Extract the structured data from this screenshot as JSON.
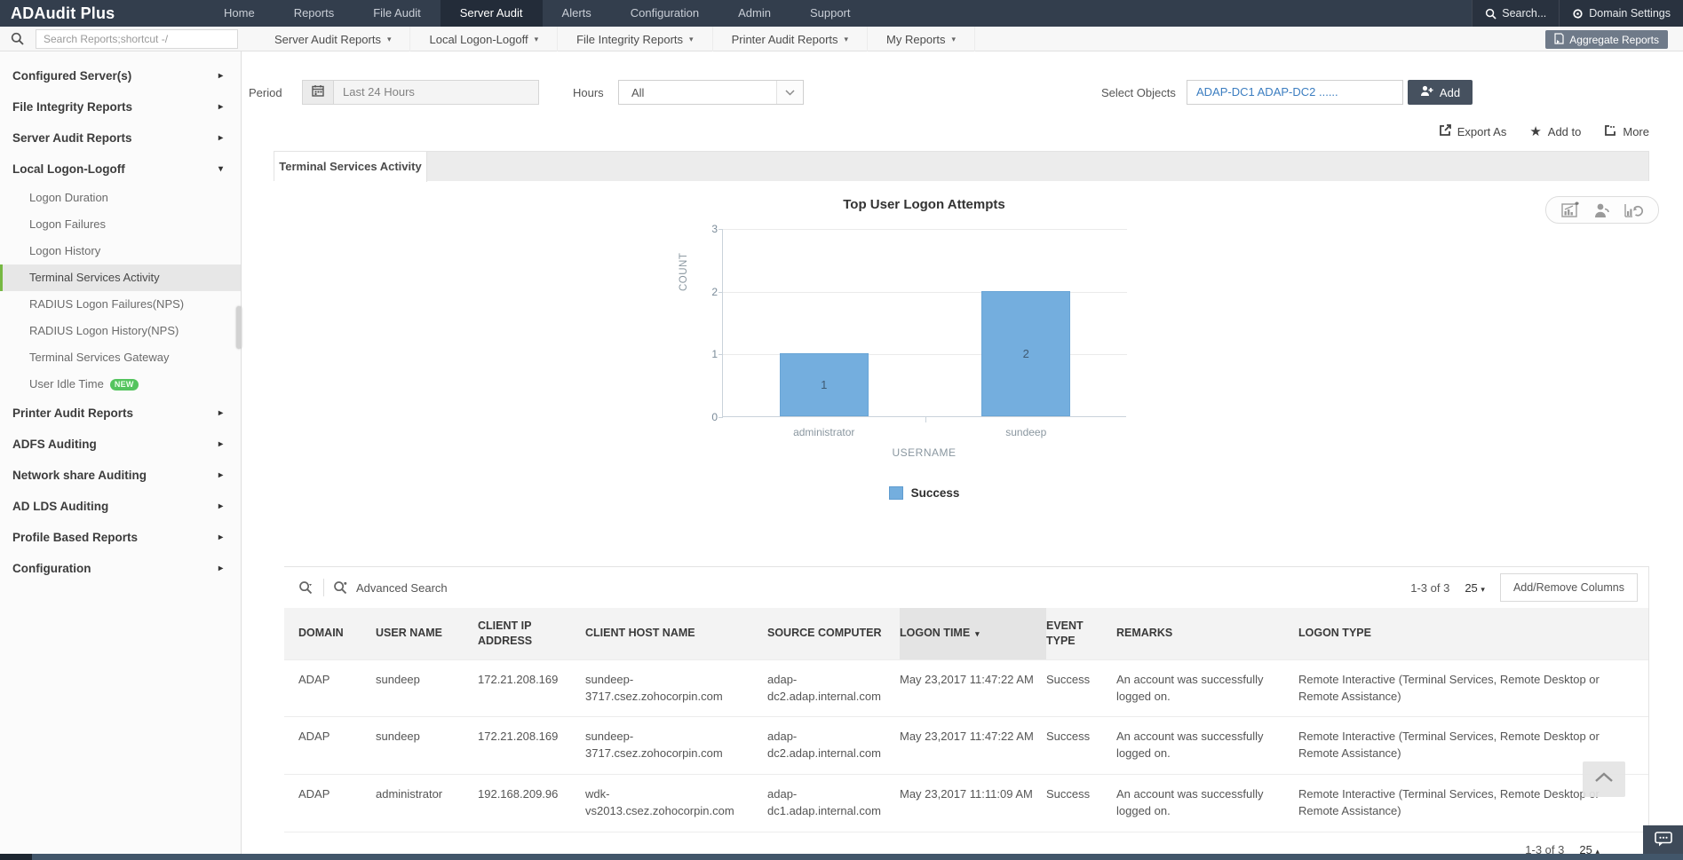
{
  "topnav": {
    "brand": "ADAudit Plus",
    "items": [
      {
        "label": "Home",
        "active": false
      },
      {
        "label": "Reports",
        "active": false
      },
      {
        "label": "File Audit",
        "active": false
      },
      {
        "label": "Server Audit",
        "active": true
      },
      {
        "label": "Alerts",
        "active": false
      },
      {
        "label": "Configuration",
        "active": false
      },
      {
        "label": "Admin",
        "active": false
      },
      {
        "label": "Support",
        "active": false
      }
    ],
    "search_label": "Search...",
    "domain_settings_label": "Domain Settings"
  },
  "menubar": {
    "search_placeholder": "Search Reports;shortcut -/",
    "menus": [
      {
        "label": "Server Audit Reports"
      },
      {
        "label": "Local Logon-Logoff"
      },
      {
        "label": "File Integrity Reports"
      },
      {
        "label": "Printer Audit Reports"
      },
      {
        "label": "My Reports"
      }
    ],
    "aggregate_label": "Aggregate Reports"
  },
  "sidebar": {
    "items": [
      {
        "label": "Configured Server(s)",
        "type": "group"
      },
      {
        "label": "File Integrity Reports",
        "type": "group"
      },
      {
        "label": "Server Audit Reports",
        "type": "group"
      },
      {
        "label": "Local Logon-Logoff",
        "type": "group",
        "expanded": true
      },
      {
        "label": "Logon Duration",
        "type": "sub"
      },
      {
        "label": "Logon Failures",
        "type": "sub"
      },
      {
        "label": "Logon History",
        "type": "sub"
      },
      {
        "label": "Terminal Services Activity",
        "type": "sub",
        "selected": true
      },
      {
        "label": "RADIUS Logon Failures(NPS)",
        "type": "sub"
      },
      {
        "label": "RADIUS Logon History(NPS)",
        "type": "sub"
      },
      {
        "label": "Terminal Services Gateway",
        "type": "sub"
      },
      {
        "label": "User Idle Time",
        "type": "sub",
        "badge": "NEW"
      },
      {
        "label": "Printer Audit Reports",
        "type": "group"
      },
      {
        "label": "ADFS Auditing",
        "type": "group"
      },
      {
        "label": "Network share Auditing",
        "type": "group"
      },
      {
        "label": "AD LDS Auditing",
        "type": "group"
      },
      {
        "label": "Profile Based Reports",
        "type": "group"
      },
      {
        "label": "Configuration",
        "type": "group"
      }
    ]
  },
  "filters": {
    "period_label": "Period",
    "period_value": "Last 24 Hours",
    "hours_label": "Hours",
    "hours_value": "All",
    "select_objects_label": "Select Objects",
    "select_objects_value": "ADAP-DC1 ADAP-DC2 ......",
    "add_label": "Add"
  },
  "actions": {
    "export_as": "Export As",
    "add_to": "Add to",
    "more": "More"
  },
  "tabs": {
    "active_label": "Terminal Services Activity"
  },
  "chart_data": {
    "type": "bar",
    "title": "Top User Logon Attempts",
    "categories": [
      "administrator",
      "sundeep"
    ],
    "series": [
      {
        "name": "Success",
        "values": [
          1,
          2
        ],
        "color": "#74aede"
      }
    ],
    "xlabel": "USERNAME",
    "ylabel": "COUNT",
    "ylim": [
      0,
      3
    ],
    "yticks": [
      0,
      1,
      2,
      3
    ],
    "grid": true,
    "legend_position": "bottom",
    "value_labels": true
  },
  "table": {
    "advanced_search_label": "Advanced Search",
    "pagination": {
      "range": "1-3 of 3",
      "page_size": "25"
    },
    "add_remove_label": "Add/Remove Columns",
    "columns": [
      {
        "label": "DOMAIN"
      },
      {
        "label": "USER NAME"
      },
      {
        "label": "CLIENT IP ADDRESS"
      },
      {
        "label": "CLIENT HOST NAME"
      },
      {
        "label": "SOURCE COMPUTER"
      },
      {
        "label": "LOGON TIME",
        "sorted": "desc"
      },
      {
        "label": "EVENT TYPE"
      },
      {
        "label": "REMARKS"
      },
      {
        "label": "LOGON TYPE"
      }
    ],
    "rows": [
      [
        "ADAP",
        "sundeep",
        "172.21.208.169",
        "sundeep-3717.csez.zohocorpin.com",
        "adap-dc2.adap.internal.com",
        "May 23,2017 11:47:22 AM",
        "Success",
        "An account was successfully logged on.",
        "Remote Interactive (Terminal Services, Remote Desktop or Remote Assistance)"
      ],
      [
        "ADAP",
        "sundeep",
        "172.21.208.169",
        "sundeep-3717.csez.zohocorpin.com",
        "adap-dc2.adap.internal.com",
        "May 23,2017 11:47:22 AM",
        "Success",
        "An account was successfully logged on.",
        "Remote Interactive (Terminal Services, Remote Desktop or Remote Assistance)"
      ],
      [
        "ADAP",
        "administrator",
        "192.168.209.96",
        "wdk-vs2013.csez.zohocorpin.com",
        "adap-dc1.adap.internal.com",
        "May 23,2017 11:11:09 AM",
        "Success",
        "An account was successfully logged on.",
        "Remote Interactive (Terminal Services, Remote Desktop or Remote Assistance)"
      ]
    ],
    "footer_pagination": {
      "range": "1-3 of 3",
      "page_size": "25"
    }
  },
  "colors": {
    "topnav_bg": "#333e4d",
    "accent_green": "#77b843",
    "bar_blue": "#74aede",
    "link_blue": "#3b7dc0"
  }
}
